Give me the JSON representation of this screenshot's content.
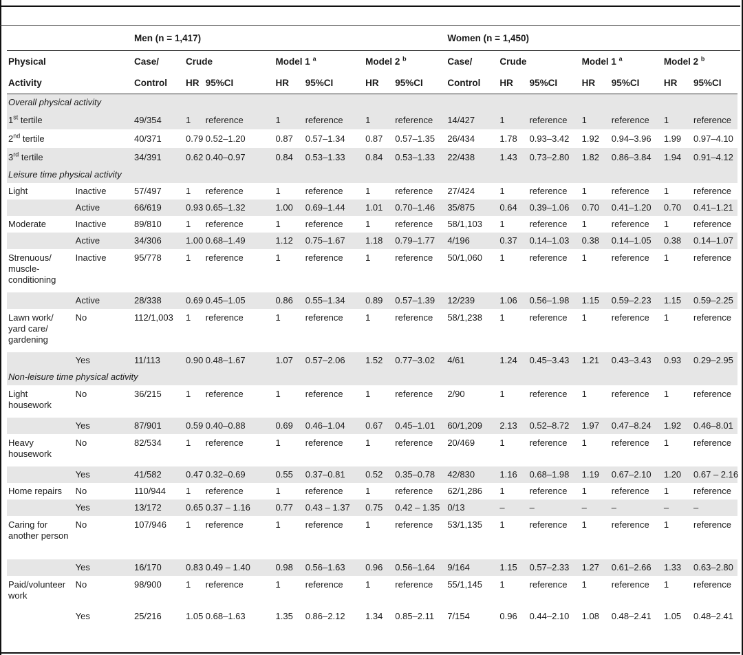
{
  "header": {
    "men_group": "Men (n = 1,417)",
    "women_group": "Women (n = 1,450)",
    "physical": "Physical",
    "activity": "Activity",
    "case": "Case/",
    "control": "Control",
    "crude": "Crude",
    "model1": "Model 1",
    "model1_sup": "a",
    "model2": "Model 2",
    "model2_sup": "b",
    "hr": "HR",
    "ci": "95%CI"
  },
  "rows": [
    {
      "type": "section",
      "label": "Overall physical activity"
    },
    {
      "type": "data",
      "label": "1",
      "label_sup": "st",
      "label_rest": " tertile",
      "sub": "",
      "cells": [
        "49/354",
        "1",
        "reference",
        "1",
        "reference",
        "1",
        "reference",
        "14/427",
        "1",
        "reference",
        "1",
        "reference",
        "1",
        "reference"
      ]
    },
    {
      "type": "data",
      "label": "2",
      "label_sup": "nd",
      "label_rest": " tertile",
      "sub": "",
      "cells": [
        "40/371",
        "0.79",
        "0.52–1.20",
        "0.87",
        "0.57–1.34",
        "0.87",
        "0.57–1.35",
        "26/434",
        "1.78",
        "0.93–3.42",
        "1.92",
        "0.94–3.96",
        "1.99",
        "0.97–4.10"
      ]
    },
    {
      "type": "data",
      "label": "3",
      "label_sup": "rd",
      "label_rest": " tertile",
      "sub": "",
      "cells": [
        "34/391",
        "0.62",
        "0.40–0.97",
        "0.84",
        "0.53–1.33",
        "0.84",
        "0.53–1.33",
        "22/438",
        "1.43",
        "0.73–2.80",
        "1.82",
        "0.86–3.84",
        "1.94",
        "0.91–4.12"
      ]
    },
    {
      "type": "section",
      "label": "Leisure time physical activity"
    },
    {
      "type": "data",
      "label": "Light",
      "sub": "Inactive",
      "cells": [
        "57/497",
        "1",
        "reference",
        "1",
        "reference",
        "1",
        "reference",
        "27/424",
        "1",
        "reference",
        "1",
        "reference",
        "1",
        "reference"
      ]
    },
    {
      "type": "data",
      "label": "",
      "sub": "Active",
      "cells": [
        "66/619",
        "0.93",
        "0.65–1.32",
        "1.00",
        "0.69–1.44",
        "1.01",
        "0.70–1.46",
        "35/875",
        "0.64",
        "0.39–1.06",
        "0.70",
        "0.41–1.20",
        "0.70",
        "0.41–1.21"
      ]
    },
    {
      "type": "data",
      "label": "Moderate",
      "sub": "Inactive",
      "cells": [
        "89/810",
        "1",
        "reference",
        "1",
        "reference",
        "1",
        "reference",
        "58/1,103",
        "1",
        "reference",
        "1",
        "reference",
        "1",
        "reference"
      ]
    },
    {
      "type": "data",
      "label": "",
      "sub": "Active",
      "cells": [
        "34/306",
        "1.00",
        "0.68–1.49",
        "1.12",
        "0.75–1.67",
        "1.18",
        "0.79–1.77",
        "4/196",
        "0.37",
        "0.14–1.03",
        "0.38",
        "0.14–1.05",
        "0.38",
        "0.14–1.07"
      ]
    },
    {
      "type": "data",
      "label": "Strenuous/ muscle-conditioning",
      "sub": "Inactive",
      "cells": [
        "95/778",
        "1",
        "reference",
        "1",
        "reference",
        "1",
        "reference",
        "50/1,060",
        "1",
        "reference",
        "1",
        "reference",
        "1",
        "reference"
      ]
    },
    {
      "type": "data",
      "label": "",
      "sub": "Active",
      "cells": [
        "28/338",
        "0.69",
        "0.45–1.05",
        "0.86",
        "0.55–1.34",
        "0.89",
        "0.57–1.39",
        "12/239",
        "1.06",
        "0.56–1.98",
        "1.15",
        "0.59–2.23",
        "1.15",
        "0.59–2.25"
      ]
    },
    {
      "type": "data",
      "label": "Lawn work/ yard care/ gardening",
      "sub": "No",
      "cells": [
        "112/1,003",
        "1",
        "reference",
        "1",
        "reference",
        "1",
        "reference",
        "58/1,238",
        "1",
        "reference",
        "1",
        "reference",
        "1",
        "reference"
      ]
    },
    {
      "type": "data",
      "label": "",
      "sub": "Yes",
      "cells": [
        "11/113",
        "0.90",
        "0.48–1.67",
        "1.07",
        "0.57–2.06",
        "1.52",
        "0.77–3.02",
        "4/61",
        "1.24",
        "0.45–3.43",
        "1.21",
        "0.43–3.43",
        "0.93",
        "0.29–2.95"
      ]
    },
    {
      "type": "section",
      "label": "Non-leisure time physical activity"
    },
    {
      "type": "data",
      "label": "Light housework",
      "sub": "No",
      "cells": [
        "36/215",
        "1",
        "reference",
        "1",
        "reference",
        "1",
        "reference",
        "2/90",
        "1",
        "reference",
        "1",
        "reference",
        "1",
        "reference"
      ]
    },
    {
      "type": "data",
      "label": "",
      "sub": "Yes",
      "cells": [
        "87/901",
        "0.59",
        "0.40–0.88",
        "0.69",
        "0.46–1.04",
        "0.67",
        "0.45–1.01",
        "60/1,209",
        "2.13",
        "0.52–8.72",
        "1.97",
        "0.47–8.24",
        "1.92",
        "0.46–8.01"
      ]
    },
    {
      "type": "data",
      "label": "Heavy housework",
      "sub": "No",
      "cells": [
        "82/534",
        "1",
        "reference",
        "1",
        "reference",
        "1",
        "reference",
        "20/469",
        "1",
        "reference",
        "1",
        "reference",
        "1",
        "reference"
      ]
    },
    {
      "type": "data",
      "label": "",
      "sub": "Yes",
      "cells": [
        "41/582",
        "0.47",
        "0.32–0.69",
        "0.55",
        "0.37–0.81",
        "0.52",
        "0.35–0.78",
        "42/830",
        "1.16",
        "0.68–1.98",
        "1.19",
        "0.67–2.10",
        "1.20",
        "0.67 – 2.16"
      ]
    },
    {
      "type": "data",
      "label": "Home repairs",
      "sub": "No",
      "cells": [
        "110/944",
        "1",
        "reference",
        "1",
        "reference",
        "1",
        "reference",
        "62/1,286",
        "1",
        "reference",
        "1",
        "reference",
        "1",
        "reference"
      ]
    },
    {
      "type": "data",
      "label": "",
      "sub": "Yes",
      "cells": [
        "13/172",
        "0.65",
        "0.37 – 1.16",
        "0.77",
        "0.43 – 1.37",
        "0.75",
        "0.42 – 1.35",
        "0/13",
        "–",
        "–",
        "–",
        "–",
        "–",
        "–"
      ]
    },
    {
      "type": "data",
      "label": "Caring for another person",
      "sub": "No",
      "cells": [
        "107/946",
        "1",
        "reference",
        "1",
        "reference",
        "1",
        "reference",
        "53/1,135",
        "1",
        "reference",
        "1",
        "reference",
        "1",
        "reference"
      ]
    },
    {
      "type": "data",
      "label": "",
      "sub": "Yes",
      "cells": [
        "16/170",
        "0.83",
        "0.49 – 1.40",
        "0.98",
        "0.56–1.63",
        "0.96",
        "0.56–1.64",
        "9/164",
        "1.15",
        "0.57–2.33",
        "1.27",
        "0.61–2.66",
        "1.33",
        "0.63–2.80"
      ]
    },
    {
      "type": "data",
      "label": "Paid/volunteer work",
      "sub": "No",
      "cells": [
        "98/900",
        "1",
        "reference",
        "1",
        "reference",
        "1",
        "reference",
        "55/1,145",
        "1",
        "reference",
        "1",
        "reference",
        "1",
        "reference"
      ]
    },
    {
      "type": "data",
      "label": "",
      "sub": "Yes",
      "cells": [
        "25/216",
        "1.05",
        "0.68–1.63",
        "1.35",
        "0.86–2.12",
        "1.34",
        "0.85–2.11",
        "7/154",
        "0.96",
        "0.44–2.10",
        "1.08",
        "0.48–2.41",
        "1.05",
        "0.48–2.41"
      ]
    }
  ]
}
